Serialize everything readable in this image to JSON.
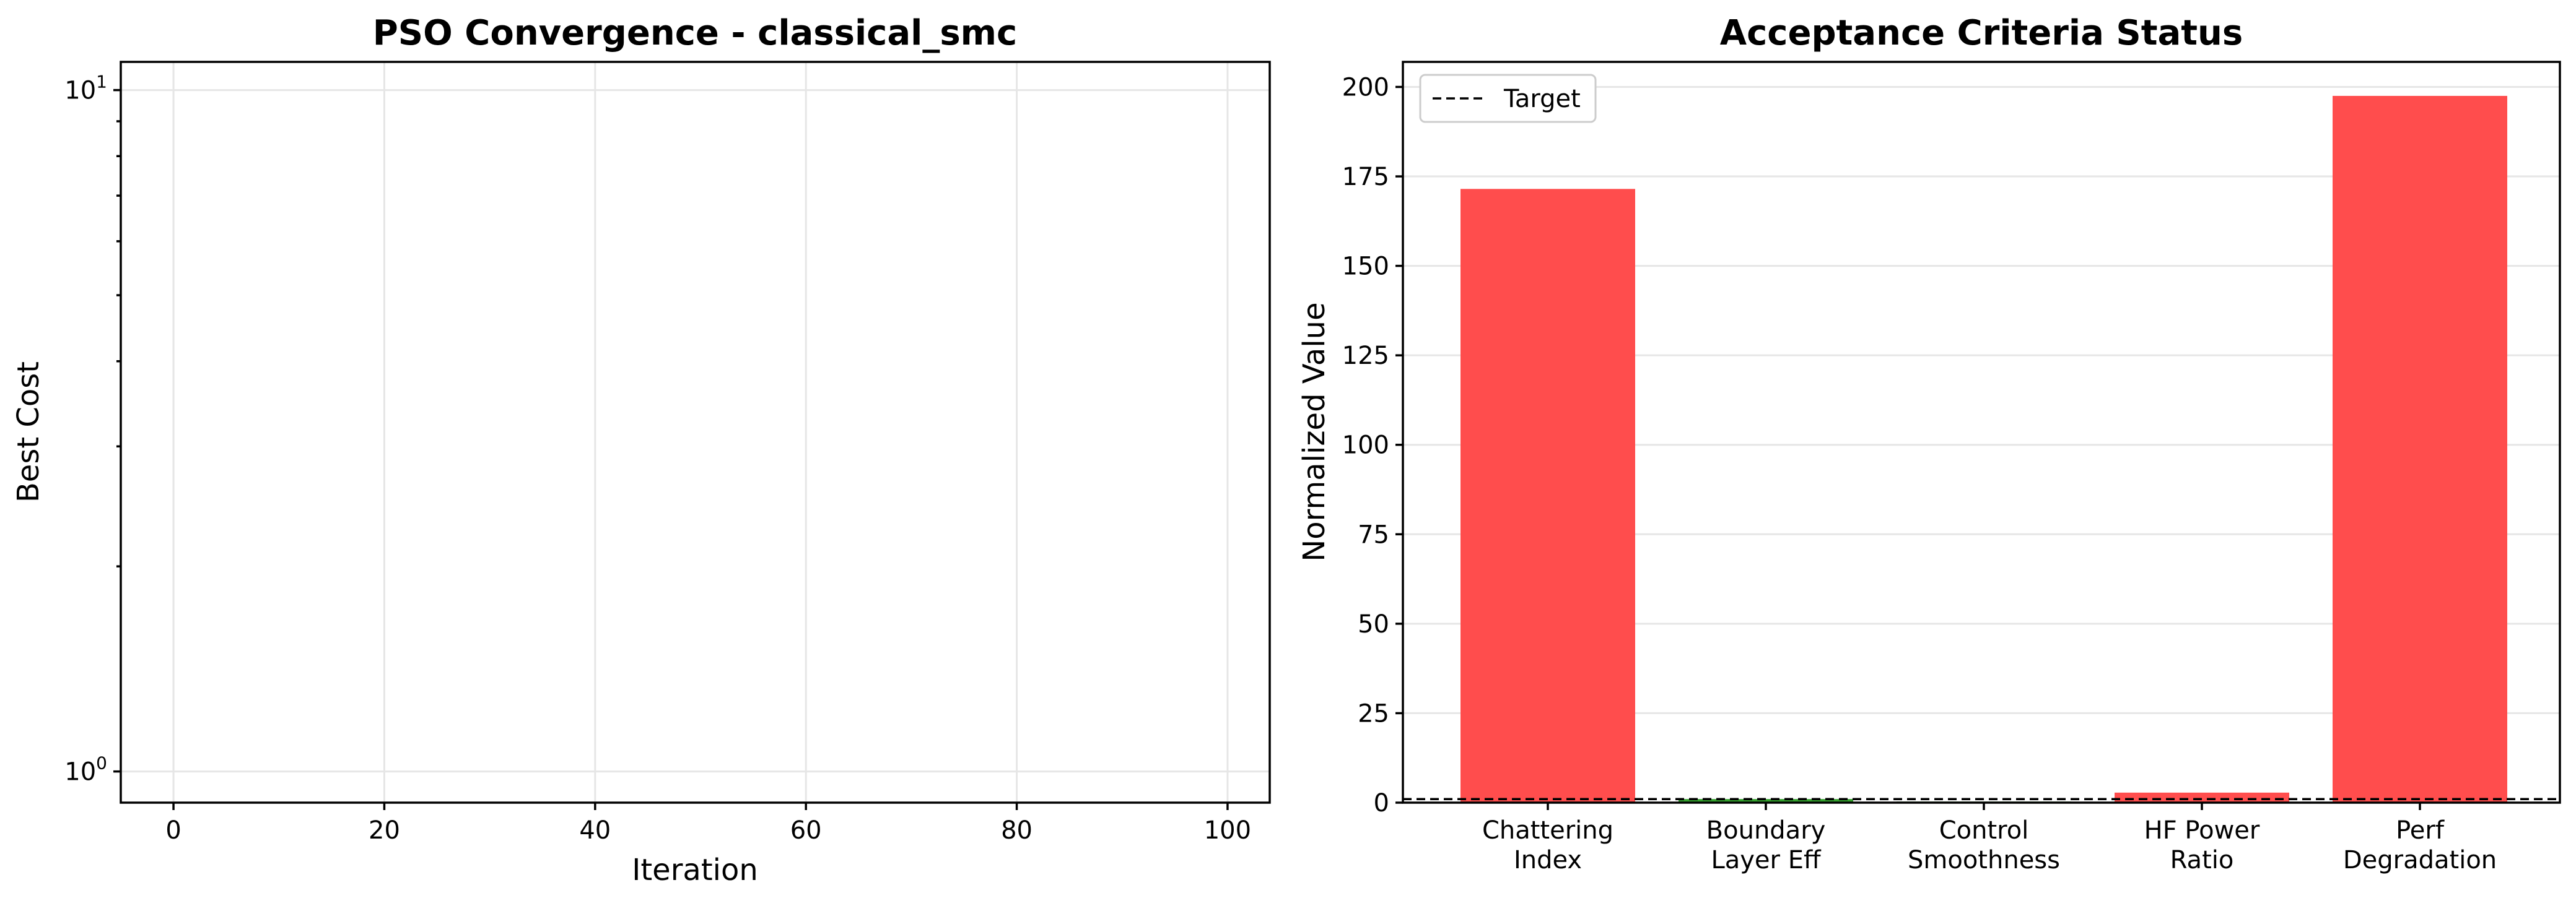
{
  "chart_data": [
    {
      "type": "line",
      "title": "PSO Convergence - classical_smc",
      "xlabel": "Iteration",
      "ylabel": "Best Cost",
      "yscale": "log",
      "xlim": [
        -5,
        104
      ],
      "ylim": [
        0.9,
        11
      ],
      "xticks": [
        0,
        20,
        40,
        60,
        80,
        100
      ],
      "yticks": [
        {
          "value": 1,
          "base": "10",
          "exp": "0"
        },
        {
          "value": 10,
          "base": "10",
          "exp": "1"
        }
      ],
      "series": [],
      "grid": true
    },
    {
      "type": "bar",
      "title": "Acceptance Criteria Status",
      "xlabel": "",
      "ylabel": "Normalized Value",
      "categories": [
        [
          "Chattering",
          "Index"
        ],
        [
          "Boundary",
          "Layer Eff"
        ],
        [
          "Control",
          "Smoothness"
        ],
        [
          "HF Power",
          "Ratio"
        ],
        [
          "Perf",
          "Degradation"
        ]
      ],
      "values": [
        171.5,
        1.0,
        0.3,
        2.8,
        197.5
      ],
      "bar_colors": [
        "#ff4d4d",
        "#33a02c",
        "#33a02c",
        "#ff4d4d",
        "#ff4d4d"
      ],
      "target": {
        "value": 1.0,
        "label": "Target",
        "style": "dashed",
        "color": "#000000"
      },
      "ylim": [
        0,
        207
      ],
      "yticks": [
        0,
        25,
        50,
        75,
        100,
        125,
        150,
        175,
        200
      ],
      "legend": "top-left",
      "grid": true
    }
  ]
}
